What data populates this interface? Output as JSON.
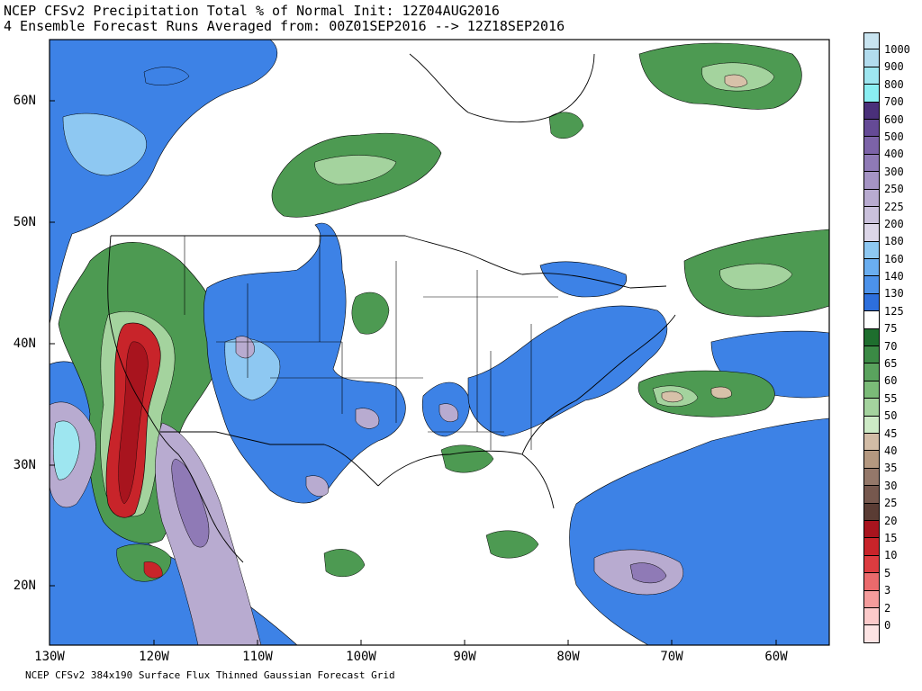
{
  "title": {
    "line1": "NCEP CFSv2 Precipitation Total % of Normal Init: 12Z04AUG2016",
    "line2": "4 Ensemble Forecast Runs Averaged from: 00Z01SEP2016 --> 12Z18SEP2016"
  },
  "footer": "NCEP CFSv2 384x190 Surface Flux Thinned Gaussian Forecast Grid",
  "axes": {
    "lat_labels": [
      "60N",
      "50N",
      "40N",
      "30N",
      "20N"
    ],
    "lon_labels": [
      "130W",
      "120W",
      "110W",
      "100W",
      "90W",
      "80W",
      "70W",
      "60W"
    ]
  },
  "colorbar": {
    "levels": [
      {
        "label": "1000",
        "color": "#c8e4f0"
      },
      {
        "label": "900",
        "color": "#b2dcee"
      },
      {
        "label": "800",
        "color": "#9ee6f0"
      },
      {
        "label": "700",
        "color": "#8aeef2"
      },
      {
        "label": "600",
        "color": "#4a307a"
      },
      {
        "label": "500",
        "color": "#654a96"
      },
      {
        "label": "400",
        "color": "#7c63a8"
      },
      {
        "label": "300",
        "color": "#8f7ab6"
      },
      {
        "label": "250",
        "color": "#a594c4"
      },
      {
        "label": "225",
        "color": "#b8abd0"
      },
      {
        "label": "200",
        "color": "#cac1dc"
      },
      {
        "label": "180",
        "color": "#dcd6e8"
      },
      {
        "label": "160",
        "color": "#8ec8f2"
      },
      {
        "label": "140",
        "color": "#6aaef0"
      },
      {
        "label": "130",
        "color": "#4c92ea"
      },
      {
        "label": "125",
        "color": "#2d6fdc"
      },
      {
        "label": "75",
        "color": "#ffffff"
      },
      {
        "label": "70",
        "color": "#1e6e2e"
      },
      {
        "label": "65",
        "color": "#3b8a45"
      },
      {
        "label": "60",
        "color": "#5aa35e"
      },
      {
        "label": "55",
        "color": "#7bbb78"
      },
      {
        "label": "50",
        "color": "#a4d39e"
      },
      {
        "label": "45",
        "color": "#cdeac6"
      },
      {
        "label": "40",
        "color": "#d2bca6"
      },
      {
        "label": "35",
        "color": "#b49880"
      },
      {
        "label": "30",
        "color": "#94786a"
      },
      {
        "label": "25",
        "color": "#76584e"
      },
      {
        "label": "20",
        "color": "#5a3c34"
      },
      {
        "label": "15",
        "color": "#a8141e"
      },
      {
        "label": "10",
        "color": "#c8242a"
      },
      {
        "label": "5",
        "color": "#dc3c40"
      },
      {
        "label": "3",
        "color": "#ea6a6c"
      },
      {
        "label": "2",
        "color": "#f49c9c"
      },
      {
        "label": "0",
        "color": "#fccaca"
      },
      {
        "label": "",
        "color": "#fde4e4"
      }
    ]
  },
  "palette": {
    "blue": "#3d82e6",
    "blue_light": "#8ec8f2",
    "green": "#4d9a52",
    "green_light": "#a4d39e",
    "green_dark": "#2e7a3a",
    "tan": "#d7c1a9",
    "red": "#c8242a",
    "red_dark": "#a8141e",
    "purple_light": "#b8abd0",
    "purple": "#8f7ab6",
    "cyan": "#9ee6f0"
  }
}
